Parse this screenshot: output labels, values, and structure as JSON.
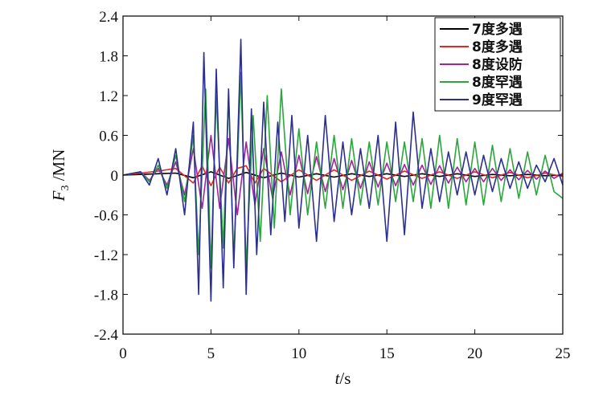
{
  "chart_data": {
    "type": "line",
    "title": "",
    "xlabel_italic": "t",
    "xlabel_unit": "/s",
    "ylabel_italic": "F",
    "ylabel_sub": "3",
    "ylabel_unit": " /MN",
    "xlim": [
      0,
      25
    ],
    "ylim": [
      -2.4,
      2.4
    ],
    "xticks": [
      0,
      5,
      10,
      15,
      20,
      25
    ],
    "yticks": [
      -2.4,
      -1.8,
      -1.2,
      -0.6,
      0,
      0.6,
      1.2,
      1.8,
      2.4
    ],
    "ytick_labels": [
      "-2.4",
      "-1.8",
      "-1.2",
      "-0.6",
      "0",
      "0.6",
      "1.2",
      "1.8",
      "2.4"
    ],
    "grid": false,
    "legend_position": "top-right",
    "series": [
      {
        "name": "7度多遇",
        "color": "#000000",
        "x": [
          0,
          1,
          2,
          3,
          4,
          5,
          6,
          7,
          8,
          9,
          10,
          11,
          12,
          13,
          14,
          15,
          16,
          17,
          18,
          19,
          20,
          21,
          22,
          23,
          24,
          25
        ],
        "y": [
          0,
          0.01,
          0.02,
          0.03,
          -0.04,
          0.05,
          -0.05,
          0.04,
          -0.04,
          0.03,
          -0.03,
          0.02,
          -0.03,
          0.02,
          -0.02,
          0.02,
          -0.02,
          0.02,
          -0.02,
          0.02,
          -0.02,
          0.01,
          -0.01,
          0.01,
          -0.01,
          0
        ]
      },
      {
        "name": "8度多遇",
        "color": "#e8251e",
        "x": [
          0,
          1,
          2,
          3,
          4,
          4.5,
          5,
          5.5,
          6,
          6.5,
          7,
          7.5,
          8,
          9,
          10,
          11,
          12,
          13,
          14,
          15,
          16,
          17,
          18,
          19,
          20,
          21,
          22,
          23,
          24,
          25
        ],
        "y": [
          0,
          0.03,
          0.06,
          0.1,
          -0.12,
          0.14,
          -0.16,
          0.12,
          -0.12,
          0.1,
          0.14,
          -0.12,
          0.1,
          -0.1,
          0.08,
          -0.08,
          0.08,
          -0.08,
          0.06,
          -0.06,
          0.06,
          -0.05,
          0.05,
          -0.05,
          0.05,
          -0.04,
          0.04,
          -0.04,
          0.03,
          -0.02
        ]
      },
      {
        "name": "8度设防",
        "color": "#a3239c",
        "x": [
          0,
          1,
          1.5,
          2,
          2.5,
          3,
          3.5,
          4,
          4.5,
          5,
          5.5,
          6,
          6.5,
          7,
          7.5,
          8,
          8.5,
          9,
          9.5,
          10,
          10.5,
          11,
          11.5,
          12,
          12.5,
          13,
          13.5,
          14,
          14.5,
          15,
          15.5,
          16,
          16.5,
          17,
          17.5,
          18,
          18.5,
          19,
          19.5,
          20,
          20.5,
          21,
          21.5,
          22,
          22.5,
          23,
          23.5,
          24,
          24.5,
          25
        ],
        "y": [
          0,
          0.05,
          -0.08,
          0.1,
          -0.15,
          0.2,
          -0.3,
          0.4,
          -0.5,
          0.6,
          -0.5,
          0.55,
          -0.6,
          0.5,
          -0.45,
          0.4,
          -0.35,
          0.35,
          -0.3,
          0.3,
          -0.28,
          0.28,
          -0.25,
          0.25,
          -0.22,
          0.22,
          -0.2,
          0.2,
          -0.18,
          0.18,
          -0.16,
          0.16,
          -0.15,
          0.15,
          -0.14,
          0.14,
          -0.12,
          0.12,
          -0.1,
          0.1,
          -0.1,
          0.1,
          -0.08,
          0.08,
          -0.07,
          0.07,
          -0.06,
          0.06,
          -0.05,
          0.03
        ]
      },
      {
        "name": "8度罕遇",
        "color": "#2aa63a",
        "x": [
          0,
          1,
          1.5,
          2,
          2.5,
          3,
          3.5,
          4,
          4.3,
          4.7,
          5,
          5.3,
          5.7,
          6,
          6.3,
          6.7,
          7,
          7.4,
          7.8,
          8.2,
          8.6,
          9,
          9.5,
          10,
          10.5,
          11,
          11.5,
          12,
          12.5,
          13,
          13.5,
          14,
          14.5,
          15,
          15.5,
          16,
          16.5,
          17,
          17.5,
          18,
          18.5,
          19,
          19.5,
          20,
          20.5,
          21,
          21.5,
          22,
          22.5,
          23,
          23.5,
          24,
          24.5,
          25
        ],
        "y": [
          0,
          0.05,
          -0.1,
          0.15,
          -0.2,
          0.3,
          -0.4,
          0.6,
          -1.2,
          1.3,
          -1.4,
          1.2,
          -1.1,
          1.2,
          -1.3,
          1.55,
          -1.4,
          0.9,
          -1.0,
          1.2,
          -0.8,
          1.3,
          -0.6,
          0.7,
          -0.6,
          0.5,
          -0.5,
          0.6,
          -0.5,
          0.55,
          -0.45,
          0.5,
          -0.45,
          0.5,
          -0.4,
          0.5,
          -0.4,
          0.55,
          -0.5,
          0.6,
          -0.5,
          0.55,
          -0.45,
          0.5,
          -0.45,
          0.45,
          -0.4,
          0.4,
          -0.35,
          0.35,
          -0.3,
          0.3,
          -0.25,
          -0.35
        ]
      },
      {
        "name": "9度罕遇",
        "color": "#2b2f8f",
        "x": [
          0,
          1,
          1.5,
          2,
          2.5,
          3,
          3.5,
          4,
          4.3,
          4.6,
          5,
          5.3,
          5.7,
          6,
          6.3,
          6.7,
          7,
          7.3,
          7.6,
          8,
          8.4,
          8.8,
          9.2,
          9.6,
          10,
          10.5,
          11,
          11.5,
          12,
          12.5,
          13,
          13.5,
          14,
          14.5,
          15,
          15.5,
          16,
          16.5,
          17,
          17.5,
          18,
          18.5,
          19,
          19.5,
          20,
          20.5,
          21,
          21.5,
          22,
          22.5,
          23,
          23.5,
          24,
          24.5,
          25
        ],
        "y": [
          0,
          0.05,
          -0.15,
          0.25,
          -0.3,
          0.4,
          -0.6,
          0.8,
          -1.8,
          1.85,
          -1.9,
          1.6,
          -1.7,
          1.3,
          -1.4,
          2.05,
          -1.8,
          1.0,
          -1.2,
          1.1,
          -0.9,
          0.8,
          -0.7,
          0.9,
          -0.8,
          0.6,
          -1.0,
          0.9,
          -0.7,
          0.5,
          -0.6,
          0.4,
          -0.5,
          0.6,
          -1.0,
          0.8,
          -0.9,
          0.95,
          -0.5,
          0.4,
          -0.4,
          0.35,
          -0.3,
          0.35,
          -0.3,
          0.3,
          -0.25,
          0.25,
          -0.2,
          0.2,
          -0.2,
          0.15,
          -0.1,
          0.25,
          -0.15
        ]
      }
    ]
  }
}
